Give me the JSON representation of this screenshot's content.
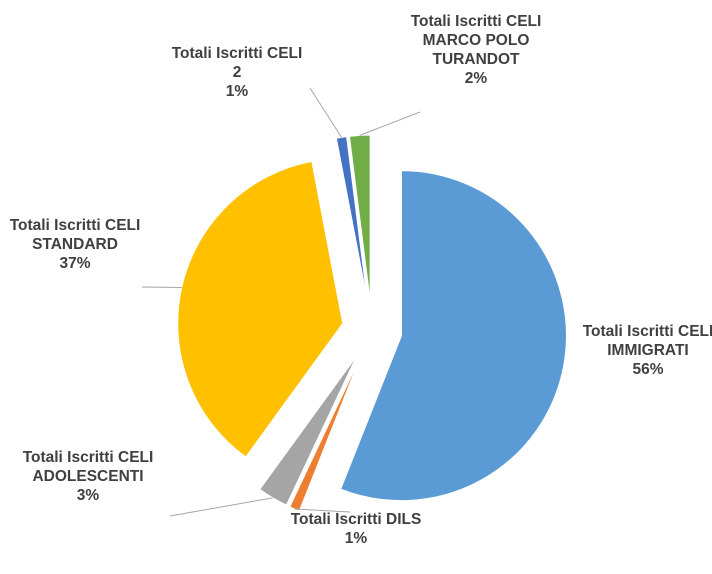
{
  "chart_data": {
    "type": "pie",
    "categories": [
      "Totali Iscritti CELI IMMIGRATI",
      "Totali Iscritti DILS",
      "Totali Iscritti CELI ADOLESCENTI",
      "Totali Iscritti CELI STANDARD",
      "Totali Iscritti CELI 2",
      "Totali Iscritti CELI MARCO POLO TURANDOT"
    ],
    "values": [
      56,
      1,
      3,
      37,
      1,
      2
    ],
    "value_labels": [
      "56%",
      "1%",
      "3%",
      "37%",
      "1%",
      "2%"
    ],
    "colors": [
      "#5b9bd5",
      "#ed7d31",
      "#a5a5a5",
      "#ffc000",
      "#4472c4",
      "#70ad47"
    ],
    "exploded": true
  }
}
